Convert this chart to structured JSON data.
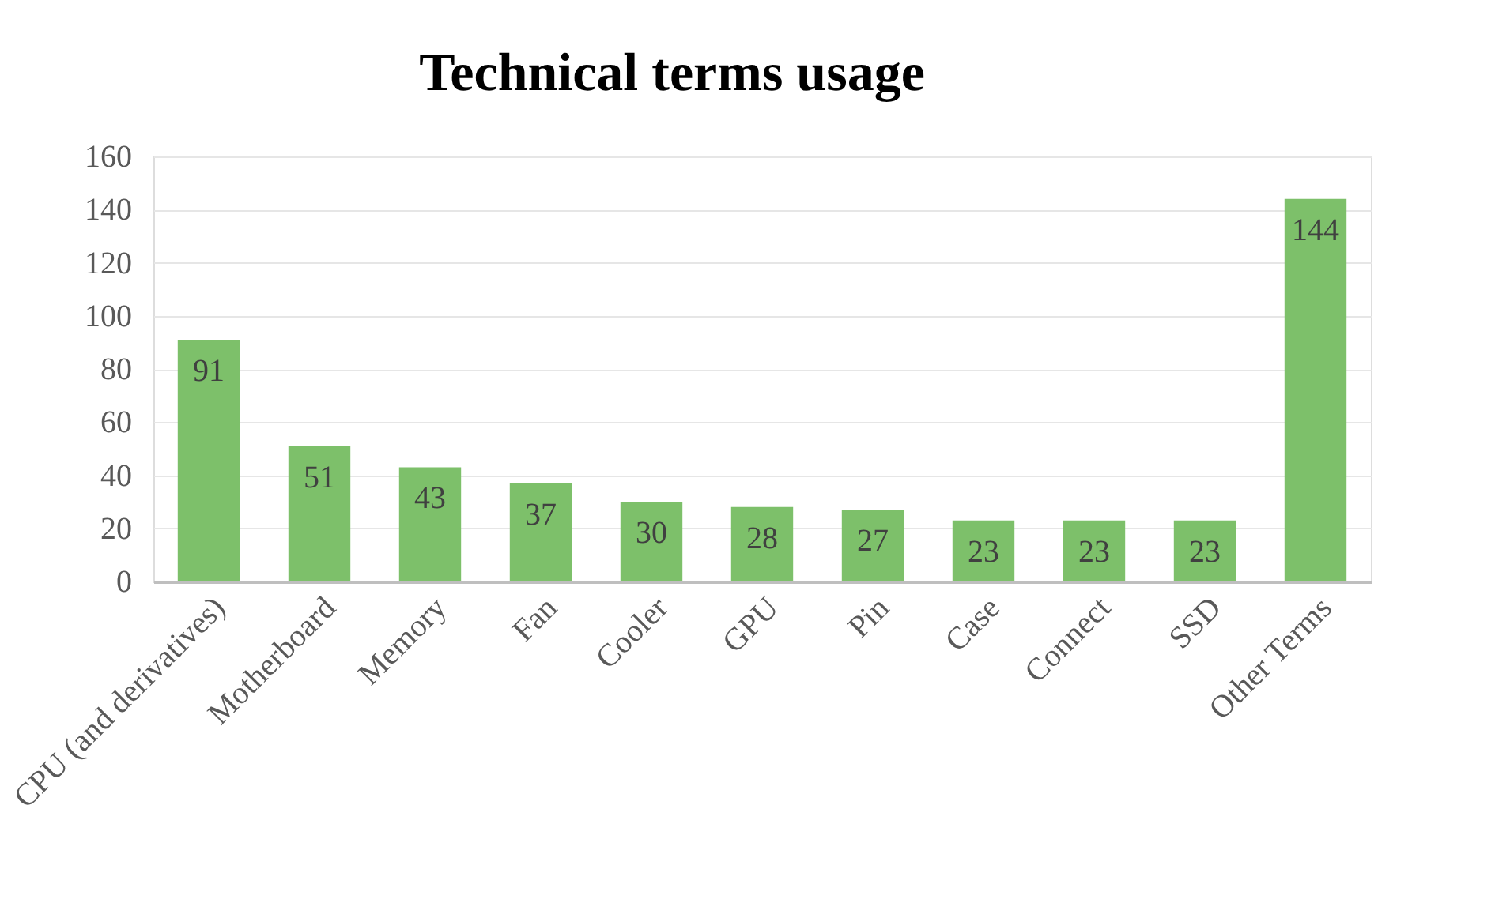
{
  "chart_data": {
    "type": "bar",
    "title": "Technical terms usage",
    "categories": [
      "CPU (and derivatives)",
      "Motherboard",
      "Memory",
      "Fan",
      "Cooler",
      "GPU",
      "Pin",
      "Case",
      "Connect",
      "SSD",
      "Other Terms"
    ],
    "values": [
      91,
      51,
      43,
      37,
      30,
      28,
      27,
      23,
      23,
      23,
      144
    ],
    "color": "#7dc06a",
    "ylim": [
      0,
      160
    ],
    "yticks": [
      0,
      20,
      40,
      60,
      80,
      100,
      120,
      140,
      160
    ],
    "grid": "y",
    "data_labels": true
  }
}
